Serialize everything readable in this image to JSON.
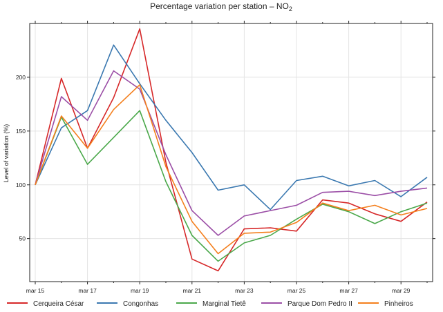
{
  "chart_data": {
    "type": "line",
    "title": "Percentage variation per station – NO",
    "title_subscript": "2",
    "xlabel": "",
    "ylabel": "Level of variation (%)",
    "x": [
      "mar 15",
      "mar 16",
      "mar 17",
      "mar 18",
      "mar 19",
      "mar 20",
      "mar 21",
      "mar 22",
      "mar 23",
      "mar 24",
      "mar 25",
      "mar 26",
      "mar 27",
      "mar 28",
      "mar 29",
      "mar 30"
    ],
    "x_tick_labels": [
      "mar 15",
      "mar 17",
      "mar 19",
      "mar 21",
      "mar 23",
      "mar 25",
      "mar 27",
      "mar 29"
    ],
    "y_ticks": [
      50,
      100,
      150,
      200
    ],
    "ylim": [
      10,
      250
    ],
    "grid": true,
    "legend_position": "bottom",
    "series": [
      {
        "name": "Cerqueira César",
        "color": "#d62728",
        "values": [
          100,
          199,
          134,
          181,
          245,
          121,
          31,
          20,
          59,
          60,
          57,
          86,
          83,
          73,
          66,
          84
        ]
      },
      {
        "name": "Congonhas",
        "color": "#3a78b0",
        "values": [
          100,
          153,
          169,
          230,
          194,
          160,
          130,
          95,
          100,
          77,
          104,
          108,
          99,
          104,
          89,
          107
        ]
      },
      {
        "name": "Marginal Tietê",
        "color": "#4aa84a",
        "values": [
          100,
          163,
          119,
          144,
          169,
          103,
          53,
          29,
          46,
          53,
          68,
          82,
          75,
          64,
          75,
          83
        ]
      },
      {
        "name": "Parque Dom Pedro II",
        "color": "#9b4ea6",
        "values": [
          100,
          182,
          160,
          206,
          189,
          128,
          76,
          53,
          71,
          76,
          81,
          93,
          94,
          90,
          94,
          97
        ]
      },
      {
        "name": "Pinheiros",
        "color": "#f47f1d",
        "values": [
          100,
          164,
          134,
          170,
          193,
          117,
          66,
          36,
          55,
          56,
          65,
          83,
          76,
          81,
          72,
          78
        ]
      }
    ]
  }
}
